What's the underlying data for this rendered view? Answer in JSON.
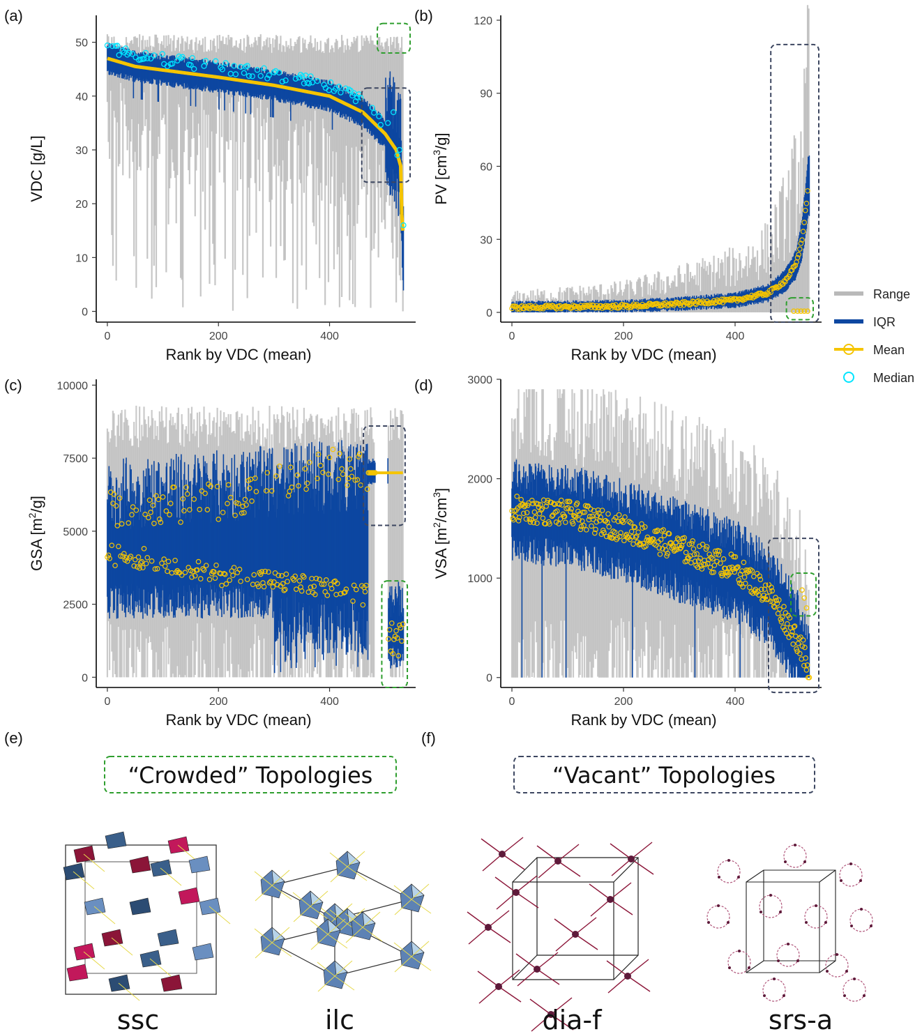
{
  "panel_labels": {
    "a": "(a)",
    "b": "(b)",
    "c": "(c)",
    "d": "(d)",
    "e": "(e)",
    "f": "(f)"
  },
  "legend": [
    {
      "label": "Range",
      "color": "#b9b9b9"
    },
    {
      "label": "IQR",
      "color": "#0d47a1"
    },
    {
      "label": "Mean",
      "color": "#f5c400"
    },
    {
      "label": "Median",
      "color": "#00e5ff"
    }
  ],
  "colors": {
    "range": "#b9b9b9",
    "iqr": "#0d47a1",
    "mean": "#f5c400",
    "median": "#00e5ff",
    "crowded_box": "#2e9e2e",
    "vacant_box": "#3c4660"
  },
  "chart_data": [
    {
      "id": "a",
      "type": "range-iqr-profile",
      "xlabel": "Rank by VDC (mean)",
      "ylabel": "VDC [g/L]",
      "xlim": [
        -20,
        555
      ],
      "ylim": [
        -2,
        55
      ],
      "xticks": [
        0,
        200,
        400
      ],
      "yticks": [
        0,
        10,
        20,
        30,
        40,
        50
      ],
      "mean_profile": [
        [
          0,
          47
        ],
        [
          50,
          45.5
        ],
        [
          200,
          43.5
        ],
        [
          300,
          42
        ],
        [
          400,
          40
        ],
        [
          460,
          37
        ],
        [
          500,
          33
        ],
        [
          520,
          30
        ],
        [
          528,
          27
        ],
        [
          530,
          18
        ],
        [
          532,
          15
        ]
      ],
      "iqr_half_width": 1.8,
      "range_upper": 51,
      "range_lower_min": 0,
      "crowded_region": {
        "x": [
          486,
          545
        ],
        "y": [
          48,
          53.5
        ]
      },
      "vacant_region": {
        "x": [
          458,
          545
        ],
        "y": [
          24,
          41.5
        ]
      }
    },
    {
      "id": "b",
      "type": "range-iqr-profile",
      "xlabel": "Rank by VDC (mean)",
      "ylabel_main": "PV [cm",
      "ylabel_sup": "3",
      "ylabel_end": "/g]",
      "xlim": [
        -20,
        555
      ],
      "ylim": [
        -4,
        122
      ],
      "xticks": [
        0,
        200,
        400
      ],
      "yticks": [
        0,
        30,
        60,
        90,
        120
      ],
      "mean_profile": [
        [
          0,
          2
        ],
        [
          200,
          2.5
        ],
        [
          300,
          3.5
        ],
        [
          400,
          5
        ],
        [
          460,
          8
        ],
        [
          490,
          13
        ],
        [
          510,
          20
        ],
        [
          520,
          30
        ],
        [
          528,
          45
        ],
        [
          531,
          52
        ]
      ],
      "range_upper_profile": [
        [
          0,
          8
        ],
        [
          200,
          12
        ],
        [
          300,
          18
        ],
        [
          400,
          25
        ],
        [
          460,
          35
        ],
        [
          500,
          60
        ],
        [
          525,
          95
        ],
        [
          530,
          118
        ]
      ],
      "crowded_region": {
        "x": [
          492,
          540
        ],
        "y": [
          -3,
          6
        ]
      },
      "vacant_region": {
        "x": [
          464,
          550
        ],
        "y": [
          -4,
          110
        ]
      }
    },
    {
      "id": "c",
      "type": "range-iqr-scatter",
      "xlabel": "Rank by VDC (mean)",
      "ylabel_main": "GSA [m",
      "ylabel_sup": "2",
      "ylabel_end": "/g]",
      "xlim": [
        -20,
        555
      ],
      "ylim": [
        -350,
        10200
      ],
      "xticks": [
        0,
        200,
        400
      ],
      "yticks": [
        0,
        2500,
        5000,
        7500,
        10000
      ],
      "upper_branch_mean": [
        [
          0,
          5700
        ],
        [
          200,
          6000
        ],
        [
          400,
          7200
        ],
        [
          470,
          7000
        ],
        [
          530,
          7000
        ]
      ],
      "lower_branch_mean": [
        [
          0,
          4200
        ],
        [
          100,
          4000
        ],
        [
          200,
          3500
        ],
        [
          300,
          3300
        ],
        [
          400,
          3000
        ],
        [
          460,
          2800
        ]
      ],
      "crowded_region": {
        "x": [
          494,
          540
        ],
        "y": [
          -350,
          3300
        ]
      },
      "vacant_region": {
        "x": [
          461,
          536
        ],
        "y": [
          5200,
          8600
        ]
      }
    },
    {
      "id": "d",
      "type": "range-iqr-scatter",
      "xlabel": "Rank by VDC (mean)",
      "ylabel_main": "VSA [m",
      "ylabel_sup": "2",
      "ylabel_end": "/cm",
      "ylabel_sup2": "3",
      "ylabel_end2": "]",
      "xlim": [
        -20,
        555
      ],
      "ylim": [
        -100,
        3000
      ],
      "xticks": [
        0,
        200,
        400
      ],
      "yticks": [
        0,
        1000,
        2000,
        3000
      ],
      "mean_profile": [
        [
          0,
          1700
        ],
        [
          100,
          1650
        ],
        [
          200,
          1500
        ],
        [
          300,
          1300
        ],
        [
          400,
          1100
        ],
        [
          460,
          850
        ],
        [
          500,
          500
        ],
        [
          520,
          300
        ],
        [
          532,
          0
        ]
      ],
      "crowded_region": {
        "x": [
          500,
          545
        ],
        "y": [
          620,
          1050
        ]
      },
      "vacant_region": {
        "x": [
          460,
          550
        ],
        "y": [
          -150,
          1400
        ]
      }
    }
  ],
  "topologies": {
    "crowded_title": "“Crowded” Topologies",
    "vacant_title": "“Vacant” Topologies",
    "names": [
      "ssc",
      "ilc",
      "dia-f",
      "srs-a"
    ]
  }
}
